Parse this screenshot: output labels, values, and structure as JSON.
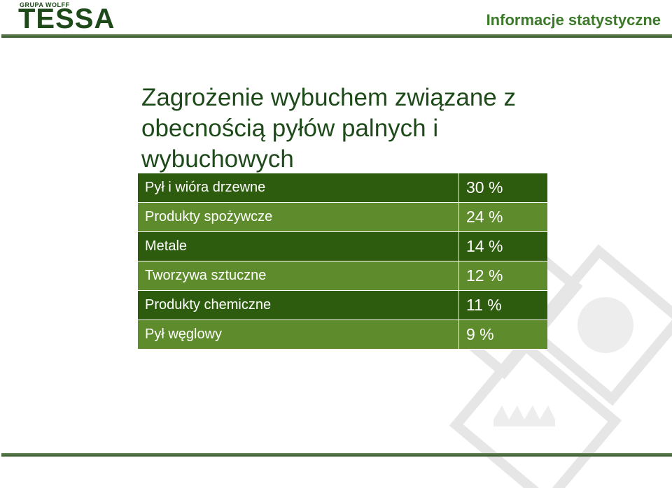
{
  "header": {
    "logo_small": "GRUPA WOLFF",
    "logo_big": "TESSA",
    "title": "Informacje statystyczne"
  },
  "slide": {
    "title": "Zagrożenie wybuchem związane z obecnością pyłów palnych i wybuchowych"
  },
  "table": {
    "rows": [
      {
        "label": "Pył i wióra drzewne",
        "value": "30 %"
      },
      {
        "label": "Produkty spożywcze",
        "value": "24 %"
      },
      {
        "label": "Metale",
        "value": "14 %"
      },
      {
        "label": "Tworzywa sztuczne",
        "value": "12 %"
      },
      {
        "label": "Produkty chemiczne",
        "value": "11 %"
      },
      {
        "label": "Pył węglowy",
        "value": "9 %"
      }
    ]
  },
  "watermark_icons": [
    "bolt-icon",
    "chain-icon",
    "wave-icon"
  ],
  "colors": {
    "dark_row": "#2e5c0e",
    "light_row": "#5e8c2c",
    "brand": "#1e4a1a"
  }
}
